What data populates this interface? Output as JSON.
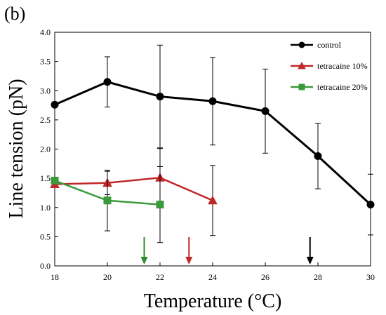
{
  "panel_label": "(b)",
  "chart_data": {
    "type": "line",
    "xlabel": "Temperature (°C)",
    "ylabel": "Line tension (pN)",
    "xlim": [
      18,
      30
    ],
    "ylim": [
      0,
      4
    ],
    "xticks": [
      18,
      20,
      22,
      24,
      26,
      28,
      30
    ],
    "yticks": [
      "0.0",
      "0.5",
      "1.0",
      "1.5",
      "2.0",
      "2.5",
      "3.0",
      "3.5",
      "4.0"
    ],
    "legend_position": "top-right",
    "grid": false,
    "series": [
      {
        "name": "control",
        "color": "#000000",
        "marker": "circle",
        "x": [
          18,
          20,
          22,
          24,
          26,
          28,
          30
        ],
        "y": [
          2.76,
          3.15,
          2.9,
          2.82,
          2.65,
          1.88,
          1.05
        ],
        "err": [
          0.0,
          0.43,
          0.88,
          0.75,
          0.72,
          0.56,
          0.52
        ]
      },
      {
        "name": "tetracaine 10%",
        "color": "#c0282a",
        "marker": "triangle",
        "x": [
          18,
          20,
          22,
          24
        ],
        "y": [
          1.4,
          1.42,
          1.51,
          1.12
        ],
        "err": [
          0.0,
          0.2,
          0.5,
          0.6
        ]
      },
      {
        "name": "tetracaine 20%",
        "color": "#3b9a3b",
        "marker": "square",
        "x": [
          18,
          20,
          22
        ],
        "y": [
          1.46,
          1.12,
          1.05
        ],
        "err": [
          0.0,
          0.52,
          0.65
        ]
      }
    ],
    "arrows": [
      {
        "x": 21.4,
        "color": "#2e8b2e"
      },
      {
        "x": 23.1,
        "color": "#c0282a"
      },
      {
        "x": 27.7,
        "color": "#000000"
      }
    ]
  }
}
